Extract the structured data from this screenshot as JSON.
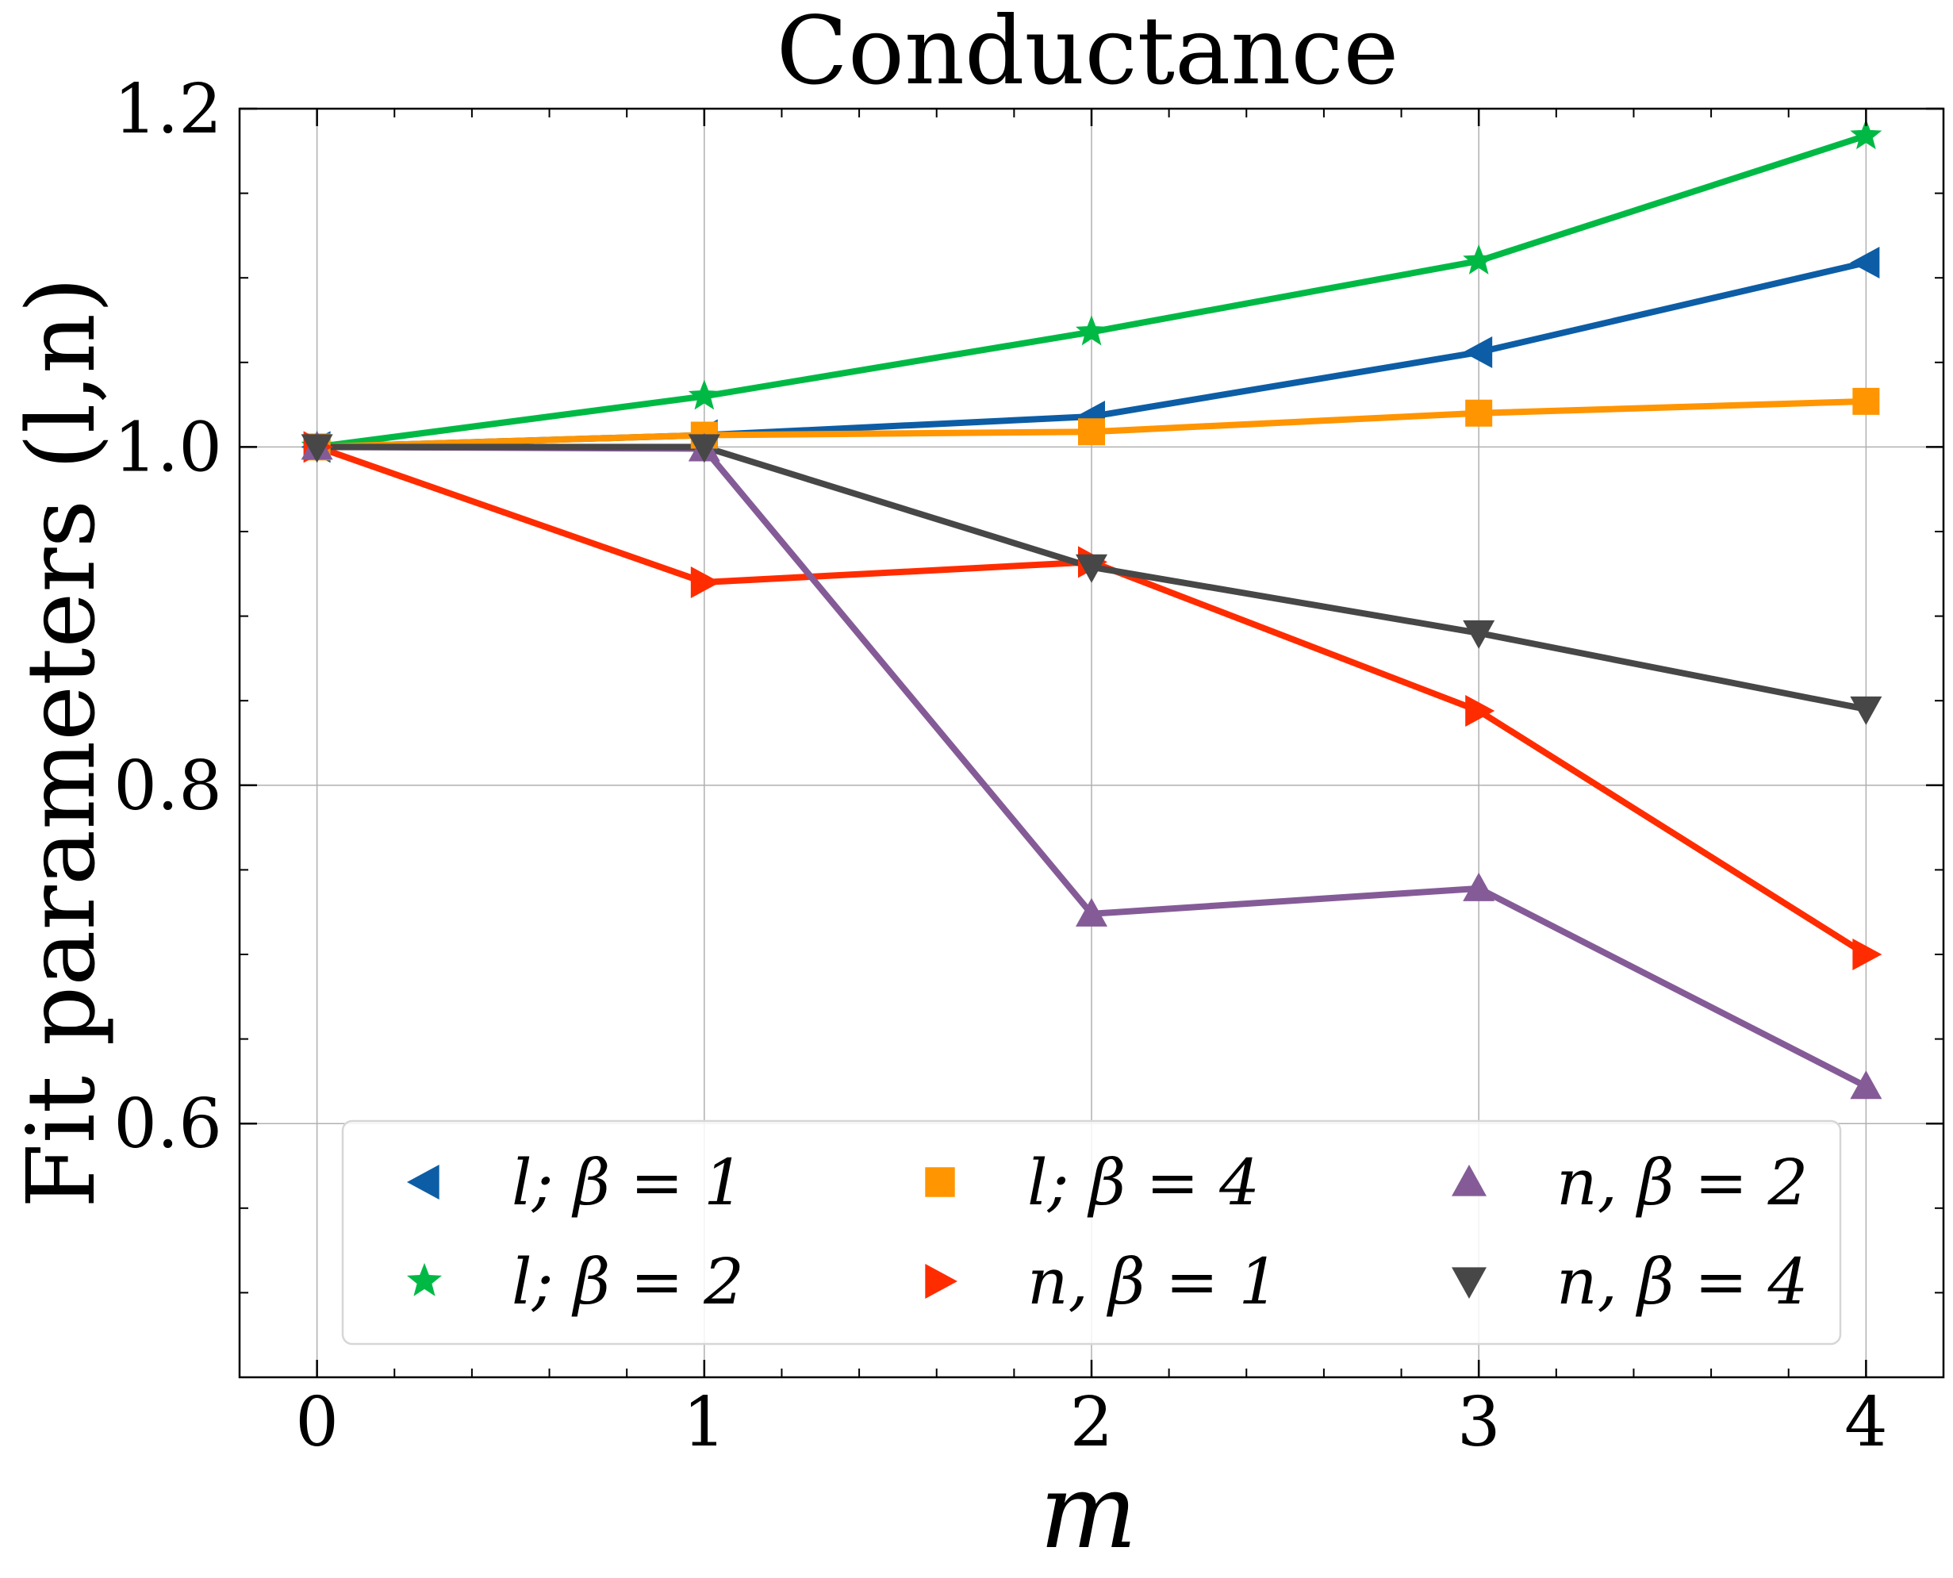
{
  "chart_data": {
    "type": "line",
    "title": "Conductance",
    "xlabel": "m",
    "ylabel": "Fit parameters (l,n)",
    "xlim": [
      -0.2,
      4.2
    ],
    "ylim": [
      0.45,
      1.2
    ],
    "xticks": [
      0,
      1,
      2,
      3,
      4
    ],
    "xtick_labels": [
      "0",
      "1",
      "2",
      "3",
      "4"
    ],
    "yticks": [
      0.6,
      0.8,
      1.0,
      1.2
    ],
    "ytick_labels": [
      "0.6",
      "0.8",
      "1.0",
      "1.2"
    ],
    "grid": true,
    "legend_position": "lower-center",
    "x": [
      0,
      1,
      2,
      3,
      4
    ],
    "series": [
      {
        "name": "l; β = 1",
        "color": "#0c5da5",
        "marker": "triangle-left",
        "values": [
          1.0,
          1.007,
          1.018,
          1.056,
          1.109
        ]
      },
      {
        "name": "l; β = 2",
        "color": "#00b945",
        "marker": "star",
        "values": [
          1.0,
          1.03,
          1.068,
          1.11,
          1.184
        ]
      },
      {
        "name": "l; β = 4",
        "color": "#ff9500",
        "marker": "square",
        "values": [
          1.0,
          1.007,
          1.009,
          1.02,
          1.027
        ]
      },
      {
        "name": "n, β = 1",
        "color": "#ff2c00",
        "marker": "triangle-right",
        "values": [
          1.0,
          0.92,
          0.932,
          0.844,
          0.7
        ]
      },
      {
        "name": "n, β = 2",
        "color": "#845b97",
        "marker": "triangle-up",
        "values": [
          1.0,
          0.999,
          0.724,
          0.739,
          0.622
        ]
      },
      {
        "name": "n, β = 4",
        "color": "#474747",
        "marker": "triangle-down",
        "values": [
          1.0,
          1.0,
          0.929,
          0.89,
          0.845
        ]
      }
    ]
  }
}
